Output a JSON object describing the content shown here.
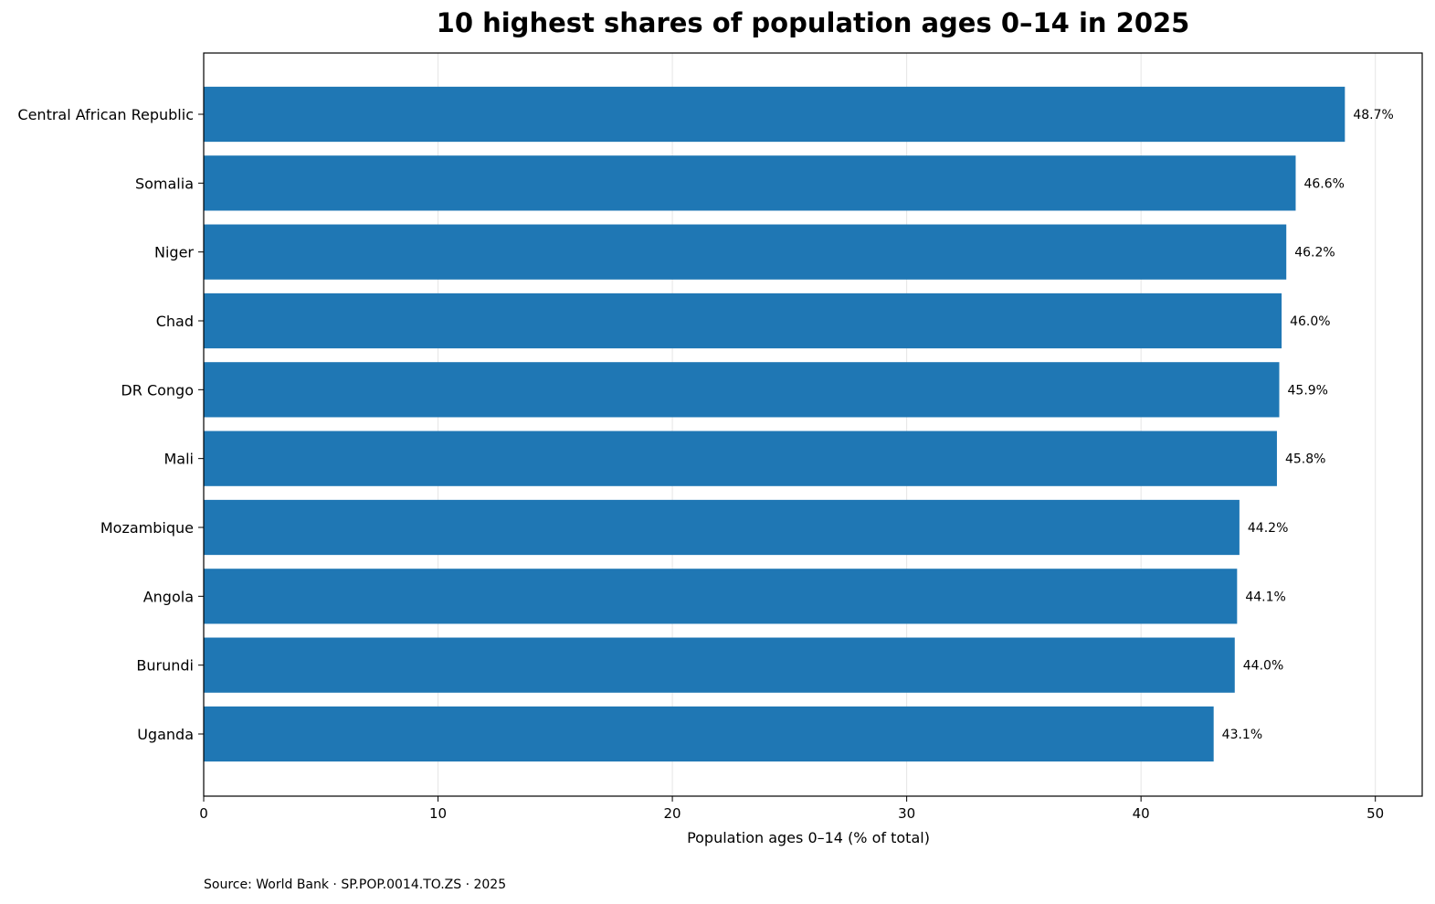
{
  "chart_data": {
    "type": "bar",
    "orientation": "horizontal",
    "title": "10 highest shares of population ages 0–14 in 2025",
    "xlabel": "Population ages 0–14 (% of total)",
    "ylabel": "",
    "categories": [
      "Central African Republic",
      "Somalia",
      "Niger",
      "Chad",
      "DR Congo",
      "Mali",
      "Mozambique",
      "Angola",
      "Burundi",
      "Uganda"
    ],
    "values": [
      48.7,
      46.6,
      46.2,
      46.0,
      45.9,
      45.8,
      44.2,
      44.1,
      44.0,
      43.1
    ],
    "value_labels": [
      "48.7%",
      "46.6%",
      "46.2%",
      "46.0%",
      "45.9%",
      "45.8%",
      "44.2%",
      "44.1%",
      "44.0%",
      "43.1%"
    ],
    "xlim": [
      0,
      52
    ],
    "xticks": [
      0,
      10,
      20,
      30,
      40,
      50
    ],
    "grid": "vertical",
    "bar_color": "#1f77b4",
    "source": "Source: World Bank · SP.POP.0014.TO.ZS · 2025"
  }
}
